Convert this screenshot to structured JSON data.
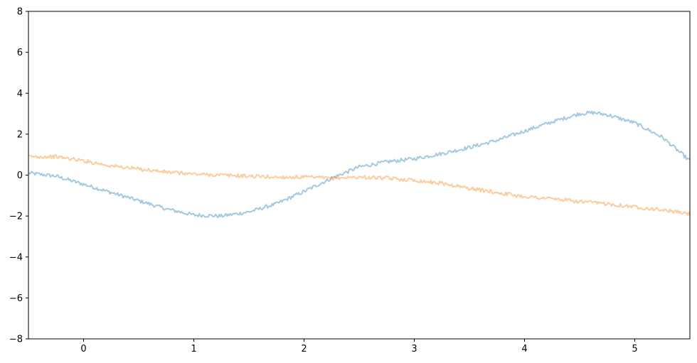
{
  "chart_data": {
    "type": "line",
    "title": "",
    "xlabel": "",
    "ylabel": "",
    "xlim": [
      -0.5,
      5.5
    ],
    "ylim": [
      -8,
      8
    ],
    "grid": false,
    "legend": "none",
    "x_ticks": [
      0,
      1,
      2,
      3,
      4,
      5
    ],
    "x_tick_labels": [
      "0",
      "1",
      "2",
      "3",
      "4",
      "5"
    ],
    "y_ticks": [
      -8,
      -6,
      -4,
      -2,
      0,
      2,
      4,
      6,
      8
    ],
    "y_tick_labels": [
      "−8",
      "−6",
      "−4",
      "−2",
      "0",
      "2",
      "4",
      "6",
      "8"
    ],
    "series": [
      {
        "color": "#1f77b4",
        "opacity": 0.4,
        "x": [
          -0.5,
          -0.25,
          0.0,
          0.25,
          0.5,
          0.75,
          1.0,
          1.25,
          1.5,
          1.75,
          2.0,
          2.25,
          2.5,
          2.75,
          3.0,
          3.25,
          3.5,
          3.75,
          4.0,
          4.25,
          4.5,
          4.625,
          4.75,
          5.0,
          5.25,
          5.5
        ],
        "y": [
          0.1,
          -0.05,
          -0.45,
          -0.85,
          -1.25,
          -1.65,
          -1.95,
          -2.0,
          -1.8,
          -1.4,
          -0.8,
          -0.15,
          0.4,
          0.65,
          0.8,
          1.05,
          1.35,
          1.7,
          2.15,
          2.6,
          3.0,
          3.05,
          2.95,
          2.55,
          1.85,
          0.7
        ]
      },
      {
        "color": "#ff7f0e",
        "opacity": 0.4,
        "x": [
          -0.5,
          -0.25,
          0.0,
          0.25,
          0.5,
          0.75,
          1.0,
          1.25,
          1.5,
          1.75,
          2.0,
          2.25,
          2.5,
          2.75,
          3.0,
          3.25,
          3.5,
          3.75,
          4.0,
          4.25,
          4.5,
          4.75,
          5.0,
          5.25,
          5.5
        ],
        "y": [
          0.9,
          0.9,
          0.7,
          0.45,
          0.3,
          0.15,
          0.05,
          0.0,
          -0.05,
          -0.1,
          -0.1,
          -0.15,
          -0.1,
          -0.15,
          -0.25,
          -0.4,
          -0.65,
          -0.85,
          -1.05,
          -1.15,
          -1.3,
          -1.4,
          -1.55,
          -1.7,
          -1.9
        ]
      }
    ]
  }
}
